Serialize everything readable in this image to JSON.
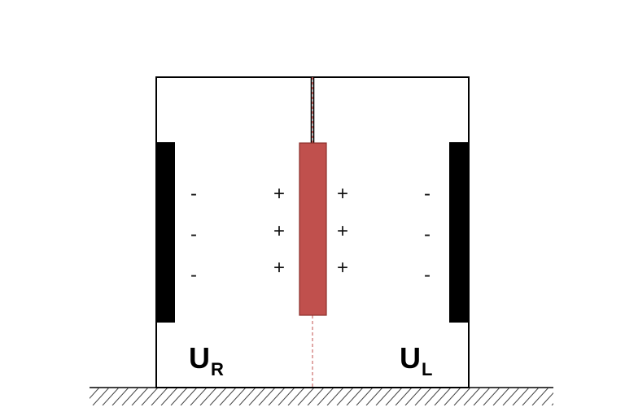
{
  "colors": {
    "outline": "#000000",
    "plate": "#000000",
    "electrode_fill": "#c0504d",
    "electrode_stroke": "#8b2e2b",
    "dashed_line": "#c0504d",
    "hatch": "#444444"
  },
  "labels": {
    "right_potential": {
      "main": "U",
      "sub": "R"
    },
    "left_potential": {
      "main": "U",
      "sub": "L"
    }
  },
  "charges": {
    "left_plate_signs": [
      "-",
      "-",
      "-"
    ],
    "electrode_left_signs": [
      "+",
      "+",
      "+"
    ],
    "electrode_right_signs": [
      "+",
      "+",
      "+"
    ],
    "right_plate_signs": [
      "-",
      "-",
      "-"
    ]
  }
}
